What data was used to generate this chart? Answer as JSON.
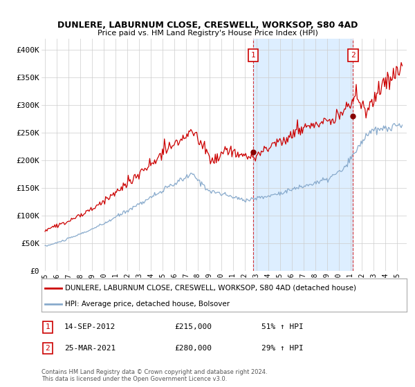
{
  "title": "DUNLERE, LABURNUM CLOSE, CRESWELL, WORKSOP, S80 4AD",
  "subtitle": "Price paid vs. HM Land Registry's House Price Index (HPI)",
  "ylabel_ticks": [
    "£0",
    "£50K",
    "£100K",
    "£150K",
    "£200K",
    "£250K",
    "£300K",
    "£350K",
    "£400K"
  ],
  "ytick_values": [
    0,
    50000,
    100000,
    150000,
    200000,
    250000,
    300000,
    350000,
    400000
  ],
  "ylim": [
    0,
    420000
  ],
  "xlim_start": 1994.7,
  "xlim_end": 2025.8,
  "line1_color": "#cc0000",
  "line2_color": "#88aacc",
  "shade_color": "#ddeeff",
  "legend_label1": "DUNLERE, LABURNUM CLOSE, CRESWELL, WORKSOP, S80 4AD (detached house)",
  "legend_label2": "HPI: Average price, detached house, Bolsover",
  "marker1_date": 2012.71,
  "marker1_value": 215000,
  "marker1_label": "1",
  "marker2_date": 2021.23,
  "marker2_value": 280000,
  "marker2_label": "2",
  "transaction1_date": "14-SEP-2012",
  "transaction1_price": "£215,000",
  "transaction1_pct": "51% ↑ HPI",
  "transaction2_date": "25-MAR-2021",
  "transaction2_price": "£280,000",
  "transaction2_pct": "29% ↑ HPI",
  "footer": "Contains HM Land Registry data © Crown copyright and database right 2024.\nThis data is licensed under the Open Government Licence v3.0.",
  "background_color": "#ffffff",
  "plot_bg_color": "#ffffff",
  "grid_color": "#cccccc"
}
